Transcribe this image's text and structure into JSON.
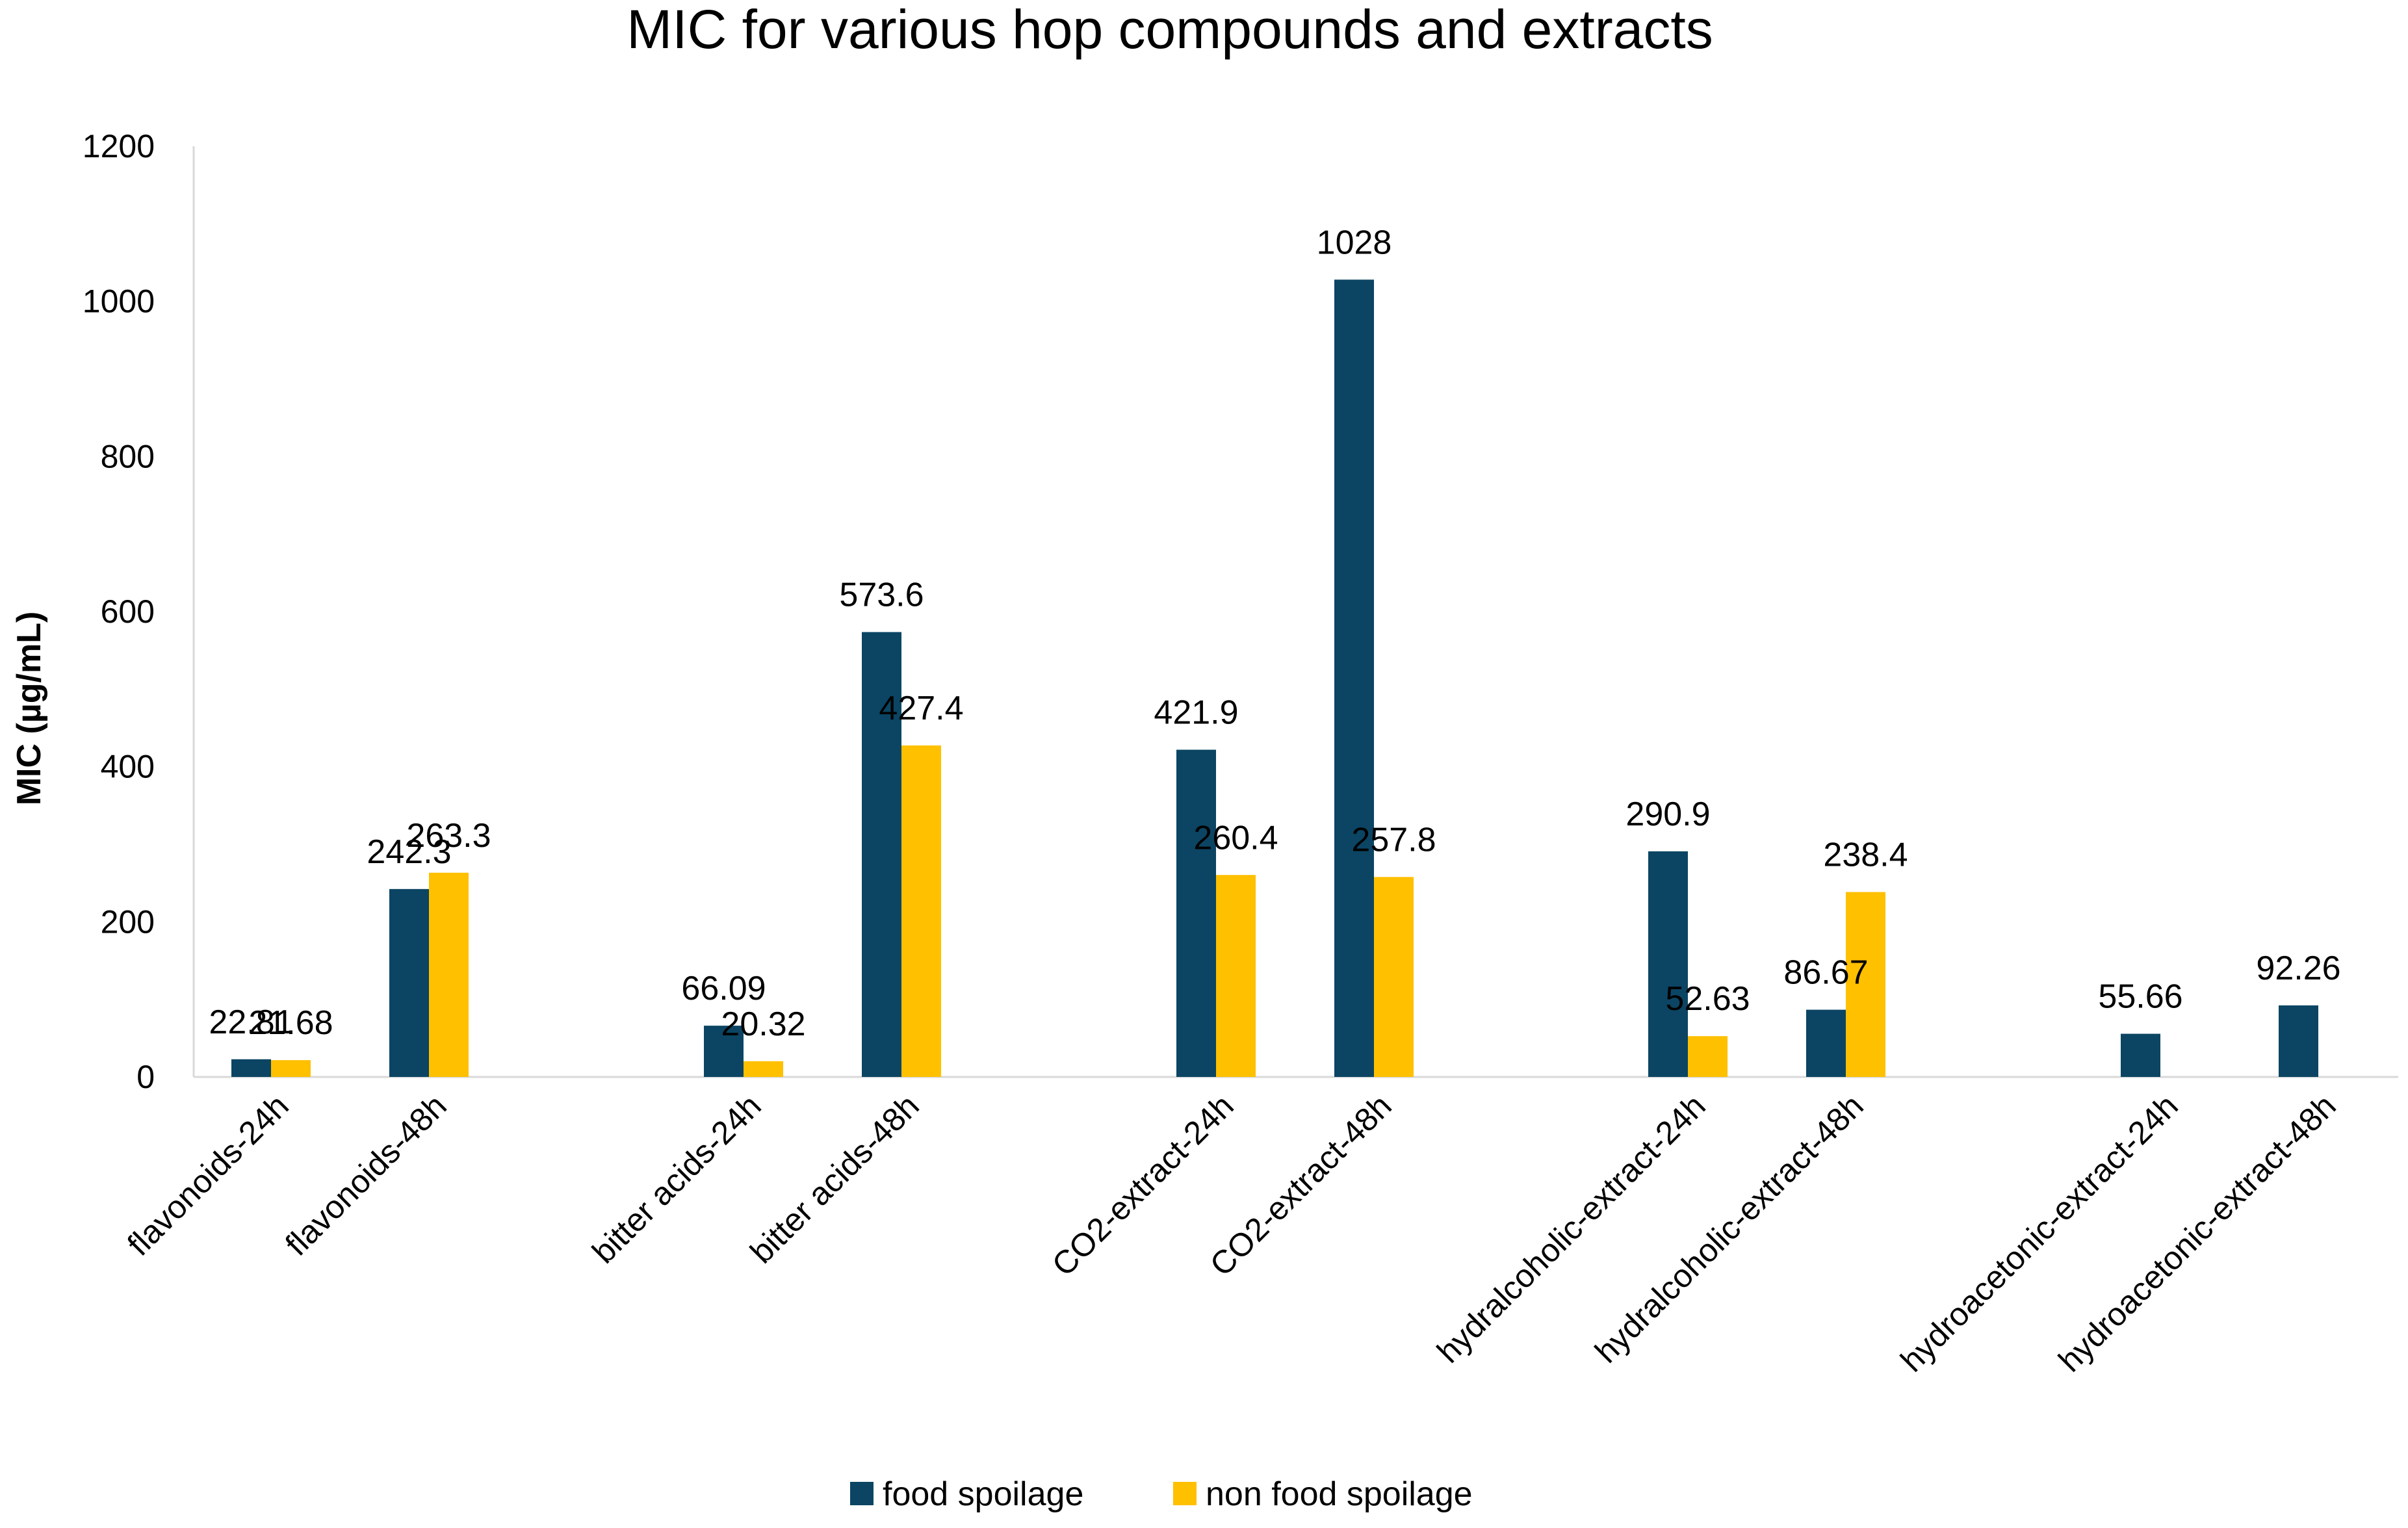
{
  "chart_data": {
    "type": "bar",
    "title": "MIC for various hop compounds and extracts",
    "xlabel": "",
    "ylabel": "MIC (µg/mL)",
    "ylim": [
      0,
      1200
    ],
    "yticks": [
      "0",
      "200",
      "400",
      "600",
      "800",
      "1000",
      "1200"
    ],
    "grid": false,
    "legend_position": "bottom",
    "categories": [
      "flavonoids-24h",
      "flavonoids-48h",
      "bitter acids-24h",
      "bitter acids-48h",
      "CO2-extract-24h",
      "CO2-extract-48h",
      "hydralcoholic-extract-24h",
      "hydralcoholic-extract-48h",
      "hydroacetonic-extract-24h",
      "hydroacetonic-extract-48h"
    ],
    "series": [
      {
        "name": "food spoilage",
        "color": "#0B4563",
        "values": [
          22.81,
          242.3,
          66.09,
          573.6,
          421.9,
          1028,
          290.9,
          86.67,
          55.66,
          92.26
        ],
        "labels": [
          "22.81",
          "242.3",
          "66.09",
          "573.6",
          "421.9",
          "1028",
          "290.9",
          "86.67",
          "55.66",
          "92.26"
        ]
      },
      {
        "name": "non food spoilage",
        "color": "#FFC000",
        "values": [
          21.68,
          263.3,
          20.32,
          427.4,
          260.4,
          257.8,
          52.63,
          238.4,
          null,
          null
        ],
        "labels": [
          "21.68",
          "263.3",
          "20.32",
          "427.4",
          "260.4",
          "257.8",
          "52.63",
          "238.4",
          null,
          null
        ]
      }
    ]
  }
}
